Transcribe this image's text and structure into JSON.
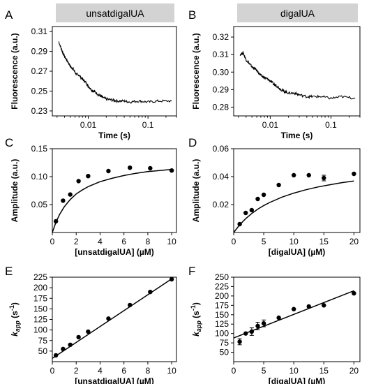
{
  "chart_data": [
    {
      "panel": "A",
      "type": "line",
      "strip_title": "unsatdigalUA",
      "xlabel": "Time (s)",
      "ylabel": "Fluorescence (a.u.)",
      "xscale": "log",
      "xlim": [
        0.0025,
        0.3
      ],
      "ylim": [
        0.225,
        0.315
      ],
      "xticks": [
        0.01,
        0.1
      ],
      "xtick_labels": [
        "0.01",
        "0.1"
      ],
      "yticks": [
        0.23,
        0.25,
        0.27,
        0.29,
        0.31
      ],
      "ytick_labels": [
        "0.23",
        "0.25",
        "0.27",
        "0.29",
        "0.31"
      ],
      "x": [
        0.0032,
        0.0036,
        0.004,
        0.0045,
        0.005,
        0.0056,
        0.0063,
        0.007,
        0.008,
        0.009,
        0.01,
        0.0115,
        0.013,
        0.015,
        0.017,
        0.02,
        0.025,
        0.03,
        0.04,
        0.05,
        0.07,
        0.1,
        0.15,
        0.25
      ],
      "y": [
        0.3,
        0.291,
        0.285,
        0.28,
        0.275,
        0.272,
        0.267,
        0.266,
        0.262,
        0.259,
        0.255,
        0.251,
        0.249,
        0.246,
        0.244,
        0.242,
        0.241,
        0.24,
        0.24,
        0.239,
        0.24,
        0.239,
        0.24,
        0.24
      ]
    },
    {
      "panel": "B",
      "type": "line",
      "strip_title": "digalUA",
      "xlabel": "Time (s)",
      "ylabel": "Fluorescence (a.u.)",
      "xscale": "log",
      "xlim": [
        0.0025,
        0.3
      ],
      "ylim": [
        0.275,
        0.326
      ],
      "xticks": [
        0.01,
        0.1
      ],
      "xtick_labels": [
        "0.01",
        "0.1"
      ],
      "yticks": [
        0.28,
        0.29,
        0.3,
        0.31,
        0.32
      ],
      "ytick_labels": [
        "0.28",
        "0.29",
        "0.30",
        "0.31",
        "0.32"
      ],
      "x": [
        0.0032,
        0.0036,
        0.004,
        0.0045,
        0.005,
        0.0056,
        0.0063,
        0.007,
        0.008,
        0.009,
        0.01,
        0.0115,
        0.013,
        0.015,
        0.017,
        0.02,
        0.025,
        0.03,
        0.04,
        0.05,
        0.07,
        0.1,
        0.15,
        0.25
      ],
      "y": [
        0.31,
        0.311,
        0.307,
        0.305,
        0.303,
        0.302,
        0.3,
        0.298,
        0.297,
        0.296,
        0.295,
        0.293,
        0.292,
        0.29,
        0.289,
        0.288,
        0.288,
        0.287,
        0.286,
        0.286,
        0.286,
        0.285,
        0.286,
        0.285
      ]
    },
    {
      "panel": "C",
      "type": "scatter",
      "xlabel": "[unsatdigalUA] (µM)",
      "ylabel": "Amplitude (a.u.)",
      "xlim": [
        0,
        10.4
      ],
      "ylim": [
        0,
        0.15
      ],
      "xticks": [
        0,
        2,
        4,
        6,
        8,
        10
      ],
      "xtick_labels": [
        "0",
        "2",
        "4",
        "6",
        "8",
        "10"
      ],
      "yticks": [
        0.05,
        0.1,
        0.15
      ],
      "ytick_labels": [
        "0.05",
        "0.10",
        "0.15"
      ],
      "points": {
        "x": [
          0.3,
          0.9,
          1.5,
          2.2,
          3.0,
          4.7,
          6.5,
          8.2,
          10.0
        ],
        "y": [
          0.02,
          0.057,
          0.068,
          0.092,
          0.101,
          0.11,
          0.116,
          0.115,
          0.111
        ]
      },
      "fit": {
        "x": [
          0,
          0.3,
          0.6,
          1,
          1.5,
          2,
          2.5,
          3,
          4,
          5,
          6,
          7,
          8,
          9,
          10
        ],
        "y": [
          0,
          0.018,
          0.032,
          0.046,
          0.059,
          0.069,
          0.076,
          0.082,
          0.091,
          0.097,
          0.102,
          0.106,
          0.109,
          0.111,
          0.113
        ]
      }
    },
    {
      "panel": "D",
      "type": "scatter",
      "xlabel": "[digalUA] (µM)",
      "ylabel": "Amplitude (a.u.)",
      "xlim": [
        0,
        21
      ],
      "ylim": [
        0,
        0.06
      ],
      "xticks": [
        0,
        5,
        10,
        15,
        20
      ],
      "xtick_labels": [
        "0",
        "5",
        "10",
        "15",
        "20"
      ],
      "yticks": [
        0.02,
        0.04,
        0.06
      ],
      "ytick_labels": [
        "0.02",
        "0.04",
        "0.06"
      ],
      "points": {
        "x": [
          1.0,
          2.0,
          3.0,
          4.0,
          5.0,
          7.5,
          10.0,
          12.5,
          15.0,
          20.0
        ],
        "y": [
          0.006,
          0.014,
          0.016,
          0.024,
          0.027,
          0.034,
          0.041,
          0.041,
          0.039,
          0.042
        ]
      },
      "errors": [
        0,
        0,
        0,
        0,
        0,
        0,
        0,
        0,
        0.002,
        0
      ],
      "fit": {
        "x": [
          0,
          1,
          2,
          3,
          4,
          5,
          6,
          8,
          10,
          12,
          14,
          16,
          18,
          20
        ],
        "y": [
          0,
          0.0055,
          0.0099,
          0.0136,
          0.0167,
          0.0193,
          0.0215,
          0.0253,
          0.0282,
          0.0306,
          0.0326,
          0.0342,
          0.0357,
          0.0369
        ]
      }
    },
    {
      "panel": "E",
      "type": "scatter",
      "xlabel": "[unsatdigalUA] (µM)",
      "ylabel_main": "k",
      "ylabel_sub": "app",
      "ylabel_unit": " (s",
      "ylabel_sup": "-1",
      "ylabel_close": ")",
      "xlim": [
        0,
        10.4
      ],
      "ylim": [
        25,
        225
      ],
      "xticks": [
        0,
        2,
        4,
        6,
        8,
        10
      ],
      "xtick_labels": [
        "0",
        "2",
        "4",
        "6",
        "8",
        "10"
      ],
      "yticks": [
        50,
        100,
        150,
        200
      ],
      "ytick_labels": [
        "50",
        "100",
        "150",
        "200"
      ],
      "yticks_minor": [
        75,
        125,
        175,
        225
      ],
      "ytick_labels_minor": [
        "75",
        "125",
        "175",
        "225"
      ],
      "points": {
        "x": [
          0.3,
          0.9,
          1.5,
          2.2,
          3.0,
          4.7,
          6.5,
          8.2,
          10.0
        ],
        "y": [
          40,
          55,
          65,
          83,
          96,
          127,
          159,
          190,
          220
        ]
      },
      "fit": {
        "x": [
          0,
          10.0
        ],
        "y": [
          33,
          221
        ]
      }
    },
    {
      "panel": "F",
      "type": "scatter",
      "xlabel": "[digalUA] (µM)",
      "ylabel_main": "k",
      "ylabel_sub": "app",
      "ylabel_unit": " (s",
      "ylabel_sup": "-1",
      "ylabel_close": ")",
      "xlim": [
        0,
        21
      ],
      "ylim": [
        25,
        250
      ],
      "xticks": [
        0,
        5,
        10,
        15,
        20
      ],
      "xtick_labels": [
        "0",
        "5",
        "10",
        "15",
        "20"
      ],
      "yticks": [
        50,
        100,
        150,
        200,
        250
      ],
      "ytick_labels": [
        "50",
        "100",
        "150",
        "200",
        "250"
      ],
      "yticks_minor": [
        75,
        125,
        175,
        225
      ],
      "ytick_labels_minor": [
        "75",
        "125",
        "175",
        "225"
      ],
      "points": {
        "x": [
          1.0,
          2.0,
          3.0,
          4.0,
          5.0,
          7.5,
          10.0,
          12.5,
          15.0,
          20.0
        ],
        "y": [
          78,
          100,
          105,
          120,
          127,
          142,
          165,
          172,
          175,
          207
        ]
      },
      "errors": [
        8,
        0,
        10,
        10,
        9,
        0,
        0,
        0,
        0,
        0
      ],
      "fit": {
        "x": [
          0,
          20.0
        ],
        "y": [
          88,
          214
        ]
      }
    }
  ]
}
